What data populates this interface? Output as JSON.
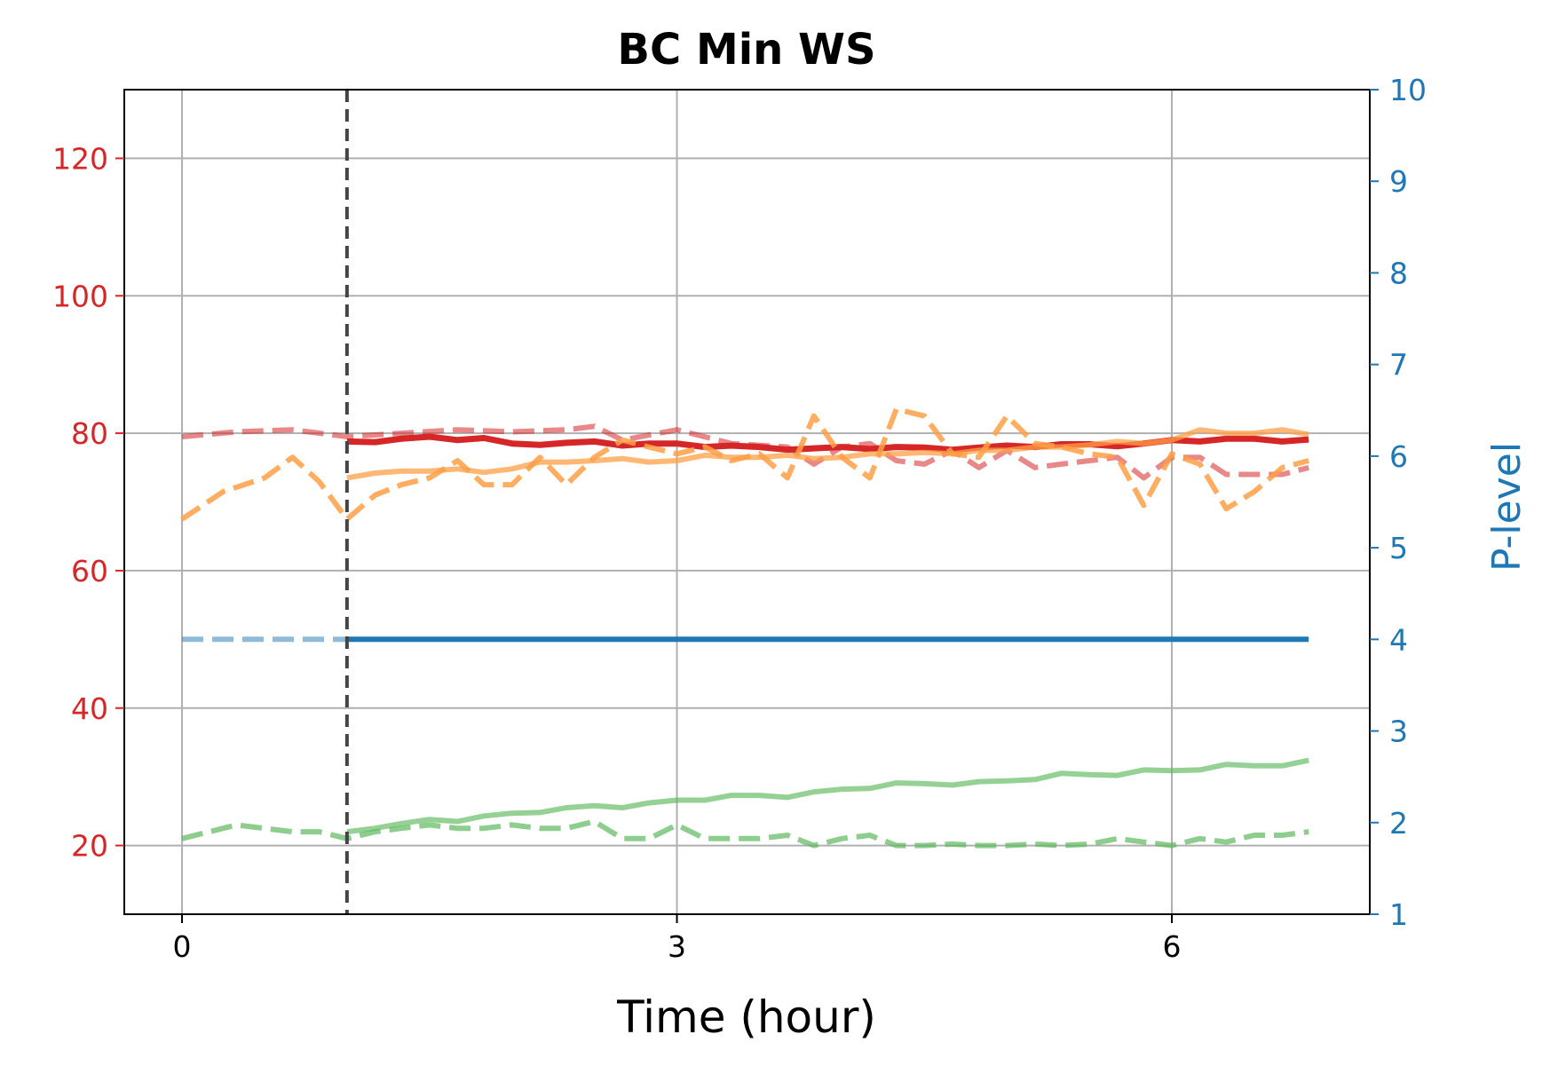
{
  "chart_data": {
    "type": "line",
    "title": "BC Min WS",
    "xlabel": "Time (hour)",
    "ylabel_left": "",
    "ylabel_right": "P-level",
    "xlim": [
      -0.35,
      7.2
    ],
    "ylim_left": [
      10,
      130
    ],
    "ylim_right": [
      1,
      10
    ],
    "x_ticks": [
      0,
      3,
      6
    ],
    "y_left_ticks": [
      20,
      40,
      60,
      80,
      100,
      120
    ],
    "y_right_ticks": [
      1,
      2,
      3,
      4,
      5,
      6,
      7,
      8,
      9,
      10
    ],
    "grid": true,
    "legend": "none",
    "vline": {
      "x": 1.0,
      "color": "#444444",
      "style": "dashed"
    },
    "colors": {
      "left_axis": "#d62728",
      "right_axis": "#1f77b4",
      "red": "#d62728",
      "orange": "#ff9f45",
      "green": "#5cb85c",
      "blue": "#1f77b4",
      "grid": "#b0b0b0"
    },
    "series": [
      {
        "color": "red",
        "style": "dashed",
        "opacity": 0.55,
        "axis": "left",
        "width": 6,
        "x": [
          0,
          0.33,
          0.67,
          1.0,
          1.33,
          1.67,
          2.0,
          2.33,
          2.5,
          2.67,
          3.0,
          3.33,
          3.67,
          3.83,
          4.0,
          4.17,
          4.33,
          4.5,
          4.67,
          4.83,
          5.0,
          5.17,
          5.33,
          5.67,
          5.83,
          6.0,
          6.17,
          6.33,
          6.5,
          6.67,
          6.83
        ],
        "y": [
          79.5,
          80.2,
          80.5,
          79.5,
          80.0,
          80.5,
          80.2,
          80.5,
          81.0,
          79.0,
          80.5,
          78.5,
          78.0,
          75.5,
          78.0,
          78.5,
          76.0,
          75.5,
          77.5,
          75.0,
          77.5,
          75.0,
          75.5,
          76.5,
          73.5,
          76.5,
          76.5,
          74.0,
          74.0,
          74.0,
          75.0
        ]
      },
      {
        "color": "red",
        "style": "solid",
        "opacity": 1.0,
        "axis": "left",
        "width": 7,
        "x": [
          1.0,
          1.17,
          1.33,
          1.5,
          1.67,
          1.83,
          2.0,
          2.17,
          2.33,
          2.5,
          2.67,
          2.83,
          3.0,
          3.17,
          3.33,
          3.5,
          3.67,
          3.83,
          4.0,
          4.17,
          4.33,
          4.5,
          4.67,
          4.83,
          5.0,
          5.17,
          5.33,
          5.5,
          5.67,
          5.83,
          6.0,
          6.17,
          6.33,
          6.5,
          6.67,
          6.83
        ],
        "y": [
          78.8,
          78.7,
          79.2,
          79.5,
          79.0,
          79.3,
          78.5,
          78.3,
          78.6,
          78.8,
          78.2,
          78.5,
          78.5,
          78.0,
          78.2,
          78.0,
          77.6,
          77.8,
          78.0,
          77.7,
          78.0,
          77.9,
          77.6,
          77.9,
          78.2,
          78.0,
          78.4,
          78.4,
          78.1,
          78.5,
          79.0,
          78.8,
          79.2,
          79.2,
          78.8,
          79.1
        ]
      },
      {
        "color": "orange",
        "style": "dashed",
        "opacity": 0.85,
        "axis": "left",
        "width": 6,
        "x": [
          0,
          0.25,
          0.5,
          0.67,
          0.83,
          1.0,
          1.17,
          1.33,
          1.5,
          1.67,
          1.83,
          2.0,
          2.17,
          2.33,
          2.5,
          2.67,
          2.83,
          3.0,
          3.17,
          3.33,
          3.5,
          3.67,
          3.83,
          4.0,
          4.17,
          4.33,
          4.5,
          4.67,
          4.83,
          5.0,
          5.17,
          5.33,
          5.5,
          5.67,
          5.83,
          6.0,
          6.17,
          6.33,
          6.5,
          6.67,
          6.83
        ],
        "y": [
          67.5,
          71.5,
          73.5,
          76.5,
          73.0,
          67.5,
          71.0,
          72.5,
          73.5,
          76.0,
          72.5,
          72.5,
          76.5,
          72.5,
          76.5,
          79.0,
          78.0,
          77.0,
          78.0,
          76.0,
          77.0,
          73.5,
          82.5,
          76.5,
          73.5,
          83.5,
          82.5,
          77.0,
          76.5,
          82.5,
          78.5,
          78.0,
          77.0,
          76.5,
          69.5,
          77.0,
          75.5,
          69.0,
          71.5,
          75.0,
          76.0
        ]
      },
      {
        "color": "orange",
        "style": "solid",
        "opacity": 0.75,
        "axis": "left",
        "width": 6,
        "x": [
          1.0,
          1.17,
          1.33,
          1.5,
          1.67,
          1.83,
          2.0,
          2.17,
          2.33,
          2.5,
          2.67,
          2.83,
          3.0,
          3.17,
          3.33,
          3.5,
          3.67,
          3.83,
          4.0,
          4.17,
          4.33,
          4.5,
          4.67,
          4.83,
          5.0,
          5.17,
          5.33,
          5.5,
          5.67,
          5.83,
          6.0,
          6.17,
          6.33,
          6.5,
          6.67,
          6.83
        ],
        "y": [
          73.5,
          74.2,
          74.5,
          74.5,
          74.8,
          74.3,
          74.8,
          75.8,
          75.8,
          76.0,
          76.3,
          75.8,
          76.0,
          76.8,
          76.5,
          76.5,
          76.8,
          76.3,
          76.5,
          77.0,
          77.0,
          77.2,
          77.0,
          77.5,
          77.5,
          78.0,
          78.0,
          78.3,
          78.8,
          78.5,
          79.0,
          80.5,
          80.0,
          80.0,
          80.5,
          79.8
        ]
      },
      {
        "color": "green",
        "style": "dashed",
        "opacity": 0.7,
        "axis": "left",
        "width": 6,
        "x": [
          0,
          0.33,
          0.67,
          0.83,
          1.0,
          1.17,
          1.33,
          1.5,
          1.67,
          1.83,
          2.0,
          2.17,
          2.33,
          2.5,
          2.67,
          2.83,
          3.0,
          3.17,
          3.33,
          3.5,
          3.67,
          3.83,
          4.0,
          4.17,
          4.33,
          4.5,
          4.67,
          4.83,
          5.0,
          5.17,
          5.33,
          5.5,
          5.67,
          5.83,
          6.0,
          6.17,
          6.33,
          6.5,
          6.67,
          6.83
        ],
        "y": [
          21.0,
          23.0,
          22.0,
          22.0,
          21.0,
          22.0,
          22.5,
          23.0,
          22.5,
          22.5,
          23.0,
          22.5,
          22.5,
          23.5,
          21.0,
          21.0,
          23.0,
          21.0,
          21.0,
          21.0,
          21.5,
          20.0,
          21.0,
          21.5,
          20.0,
          20.0,
          20.2,
          20.0,
          20.0,
          20.2,
          20.0,
          20.2,
          21.0,
          20.5,
          20.0,
          21.0,
          20.5,
          21.5,
          21.5,
          22.0
        ]
      },
      {
        "color": "green",
        "style": "solid",
        "opacity": 0.65,
        "axis": "left",
        "width": 6,
        "x": [
          1.0,
          1.17,
          1.33,
          1.5,
          1.67,
          1.83,
          2.0,
          2.17,
          2.33,
          2.5,
          2.67,
          2.83,
          3.0,
          3.17,
          3.33,
          3.5,
          3.67,
          3.83,
          4.0,
          4.17,
          4.33,
          4.5,
          4.67,
          4.83,
          5.0,
          5.17,
          5.33,
          5.5,
          5.67,
          5.83,
          6.0,
          6.17,
          6.33,
          6.5,
          6.67,
          6.83
        ],
        "y": [
          22.0,
          22.5,
          23.2,
          23.8,
          23.5,
          24.3,
          24.7,
          24.8,
          25.5,
          25.8,
          25.5,
          26.2,
          26.6,
          26.6,
          27.3,
          27.3,
          27.0,
          27.8,
          28.2,
          28.3,
          29.1,
          29.0,
          28.8,
          29.3,
          29.4,
          29.6,
          30.5,
          30.3,
          30.2,
          31.0,
          30.9,
          31.0,
          31.8,
          31.6,
          31.6,
          32.4
        ]
      },
      {
        "color": "blue",
        "style": "dashed",
        "opacity": 0.5,
        "axis": "right",
        "width": 6,
        "x": [
          0,
          1.0
        ],
        "y": [
          4,
          4
        ]
      },
      {
        "color": "blue",
        "style": "solid",
        "opacity": 1.0,
        "axis": "right",
        "width": 6,
        "x": [
          1.0,
          6.83
        ],
        "y": [
          4,
          4
        ]
      }
    ]
  }
}
